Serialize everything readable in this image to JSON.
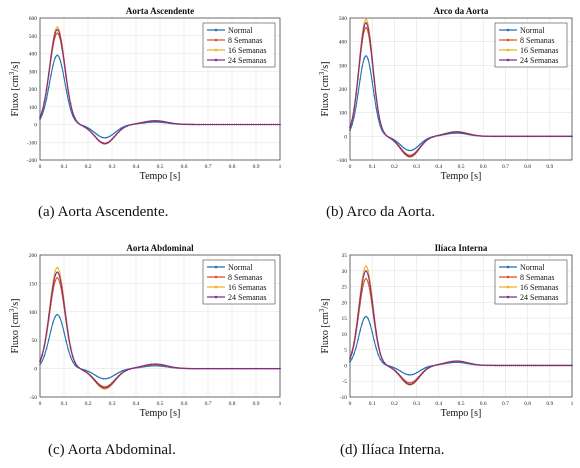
{
  "captions": [
    "(a) Aorta Ascendente.",
    "(b) Arco da Aorta.",
    "(c) Aorta Abdominal.",
    "(d) Ilíaca Interna."
  ],
  "series_colors": [
    "#1f6fb5",
    "#d9531e",
    "#edb120",
    "#7e2f8e"
  ],
  "chart_data": [
    {
      "type": "line",
      "title": "Aorta Ascendente",
      "xlabel": "Tempo [s]",
      "ylabel": "Fluxo [cm³/s]",
      "ylabel_main": "Fluxo [cm",
      "ylabel_sup": "3",
      "ylabel_tail": "/s]",
      "xlim": [
        0,
        1
      ],
      "ylim": [
        -200,
        600
      ],
      "xticks": [
        "0",
        "0.1",
        "0.2",
        "0.3",
        "0.4",
        "0.5",
        "0.6",
        "0.7",
        "0.8",
        "0.9",
        "1"
      ],
      "yticks": [
        -200,
        -100,
        0,
        100,
        200,
        300,
        400,
        500,
        600
      ],
      "grid": true,
      "legend": "top-right",
      "series": [
        {
          "name": "Normal",
          "peak": 390,
          "trough": -75,
          "rebound": 14
        },
        {
          "name": "8 Semanas",
          "peak": 515,
          "trough": -105,
          "rebound": 20
        },
        {
          "name": "16 Semanas",
          "peak": 550,
          "trough": -110,
          "rebound": 22
        },
        {
          "name": "24 Semanas",
          "peak": 535,
          "trough": -108,
          "rebound": 21
        }
      ]
    },
    {
      "type": "line",
      "title": "Arco da Aorta",
      "xlabel": "Tempo [s]",
      "ylabel": "Fluxo [cm³/s]",
      "ylabel_main": "Fluxo [cm",
      "ylabel_sup": "3",
      "ylabel_tail": "/s]",
      "xlim": [
        0,
        1
      ],
      "ylim": [
        -100,
        500
      ],
      "xticks": [
        "0",
        "0.1",
        "0.2",
        "0.3",
        "0.4",
        "0.5",
        "0.6",
        "0.7",
        "0.8",
        "0.9"
      ],
      "yticks": [
        -100,
        0,
        100,
        200,
        300,
        400,
        500
      ],
      "grid": true,
      "legend": "top-right",
      "series": [
        {
          "name": "Normal",
          "peak": 340,
          "trough": -60,
          "rebound": 14
        },
        {
          "name": "8 Semanas",
          "peak": 460,
          "trough": -80,
          "rebound": 18
        },
        {
          "name": "16 Semanas",
          "peak": 495,
          "trough": -88,
          "rebound": 20
        },
        {
          "name": "24 Semanas",
          "peak": 480,
          "trough": -85,
          "rebound": 19
        }
      ]
    },
    {
      "type": "line",
      "title": "Aorta Abdominal",
      "xlabel": "Tempo [s]",
      "ylabel": "Fluxo [cm³/s]",
      "ylabel_main": "Fluxo [cm",
      "ylabel_sup": "3",
      "ylabel_tail": "/s]",
      "xlim": [
        0,
        1
      ],
      "ylim": [
        -50,
        200
      ],
      "xticks": [
        "0",
        "0.1",
        "0.2",
        "0.3",
        "0.4",
        "0.5",
        "0.6",
        "0.7",
        "0.8",
        "0.9",
        "1"
      ],
      "yticks": [
        -50,
        0,
        50,
        100,
        150,
        200
      ],
      "grid": true,
      "legend": "top-right",
      "series": [
        {
          "name": "Normal",
          "peak": 95,
          "trough": -18,
          "rebound": 5
        },
        {
          "name": "8 Semanas",
          "peak": 160,
          "trough": -32,
          "rebound": 7
        },
        {
          "name": "16 Semanas",
          "peak": 178,
          "trough": -36,
          "rebound": 8
        },
        {
          "name": "24 Semanas",
          "peak": 170,
          "trough": -34,
          "rebound": 8
        }
      ]
    },
    {
      "type": "line",
      "title": "Ilíaca Interna",
      "xlabel": "Tempo [s]",
      "ylabel": "Fluxo [cm³/s]",
      "ylabel_main": "Fluxo [cm",
      "ylabel_sup": "3",
      "ylabel_tail": "/s]",
      "xlim": [
        0,
        1
      ],
      "ylim": [
        -10,
        35
      ],
      "xticks": [
        "0",
        "0.1",
        "0.2",
        "0.3",
        "0.4",
        "0.5",
        "0.6",
        "0.7",
        "0.8",
        "0.9",
        "1"
      ],
      "yticks": [
        -10,
        -5,
        0,
        5,
        10,
        15,
        20,
        25,
        30,
        35
      ],
      "grid": true,
      "legend": "top-right",
      "series": [
        {
          "name": "Normal",
          "peak": 15.5,
          "trough": -3,
          "rebound": 1
        },
        {
          "name": "8 Semanas",
          "peak": 27.5,
          "trough": -5.5,
          "rebound": 1.3
        },
        {
          "name": "16 Semanas",
          "peak": 31.5,
          "trough": -6.2,
          "rebound": 1.4
        },
        {
          "name": "24 Semanas",
          "peak": 30,
          "trough": -6,
          "rebound": 1.4
        }
      ]
    }
  ]
}
